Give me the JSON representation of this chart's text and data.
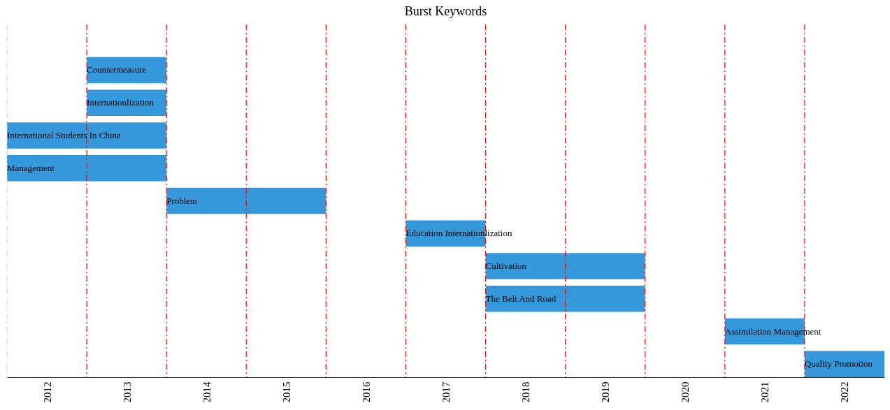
{
  "chart_data": {
    "type": "bar",
    "orientation": "horizontal",
    "title": "Burst Keywords",
    "categories": [
      "Countermeasure",
      "Internationlization",
      "International Students In China",
      "Management",
      "Problem",
      "Education Internationlization",
      "Cultivation",
      "The Belt And Road",
      "Assimilation Management",
      "Quality Promotion"
    ],
    "base": [
      2013,
      2013,
      2012,
      2012,
      2014,
      2017,
      2018,
      2018,
      2021,
      2022
    ],
    "values": [
      1,
      1,
      2,
      2,
      2,
      1,
      2,
      2,
      1,
      1
    ],
    "color": "#3498db",
    "xlim": [
      2012,
      2023
    ],
    "xticks": [
      {
        "value": 2012.5,
        "label": "2012"
      },
      {
        "value": 2013.5,
        "label": "2013"
      },
      {
        "value": 2014.5,
        "label": "2014"
      },
      {
        "value": 2015.5,
        "label": "2015"
      },
      {
        "value": 2016.5,
        "label": "2016"
      },
      {
        "value": 2017.5,
        "label": "2017"
      },
      {
        "value": 2018.5,
        "label": "2018"
      },
      {
        "value": 2019.5,
        "label": "2019"
      },
      {
        "value": 2020.5,
        "label": "2020"
      },
      {
        "value": 2021.5,
        "label": "2021"
      },
      {
        "value": 2022.5,
        "label": "2022"
      }
    ],
    "ref_lines": [
      {
        "axis": "x",
        "value": 2012,
        "color": "#f2c6c6",
        "line_style": "dashed"
      },
      {
        "axis": "x",
        "value": 2013,
        "color": "#ff0000",
        "line_style": "dashed"
      },
      {
        "axis": "x",
        "value": 2014,
        "color": "#ff0000",
        "line_style": "dashed"
      },
      {
        "axis": "x",
        "value": 2015,
        "color": "#ff0000",
        "line_style": "dashed"
      },
      {
        "axis": "x",
        "value": 2016,
        "color": "#ff0000",
        "line_style": "dashed"
      },
      {
        "axis": "x",
        "value": 2017,
        "color": "#ff0000",
        "line_style": "dashed"
      },
      {
        "axis": "x",
        "value": 2018,
        "color": "#ff0000",
        "line_style": "dashed"
      },
      {
        "axis": "x",
        "value": 2019,
        "color": "#ff0000",
        "line_style": "dashed"
      },
      {
        "axis": "x",
        "value": 2020,
        "color": "#ff0000",
        "line_style": "dashed"
      },
      {
        "axis": "x",
        "value": 2021,
        "color": "#ff0000",
        "line_style": "dashed"
      },
      {
        "axis": "x",
        "value": 2022,
        "color": "#ff0000",
        "line_style": "dashed"
      }
    ],
    "tick_labels": "x",
    "grid": false
  }
}
